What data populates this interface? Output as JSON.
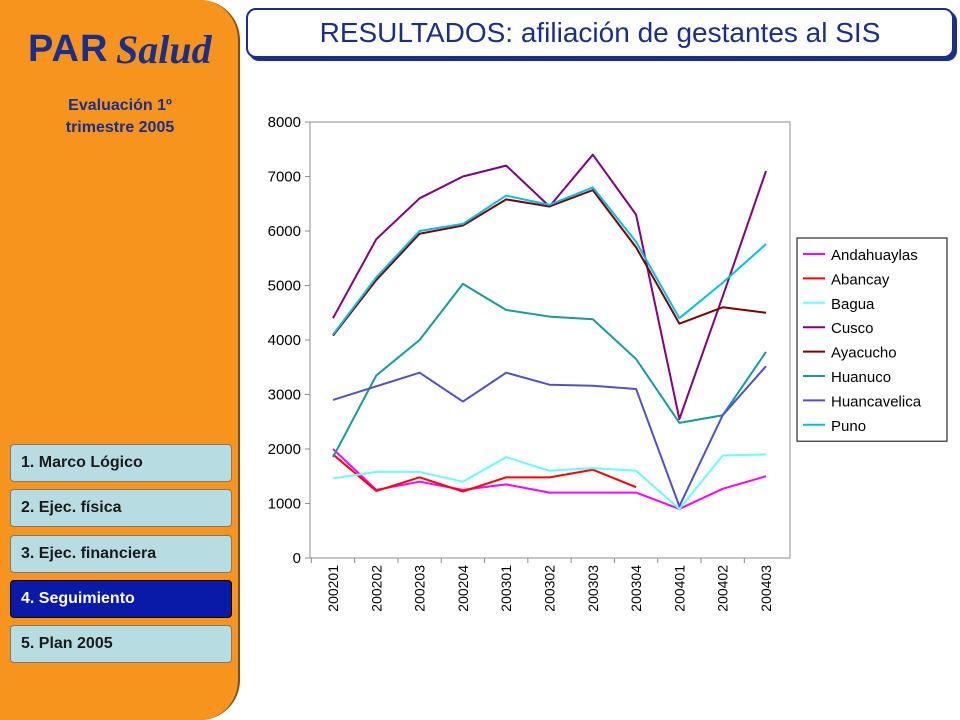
{
  "sidebar": {
    "logo_par": "PAR",
    "logo_salud": "Salud",
    "subtitle_line1": "Evaluación 1º",
    "subtitle_line2": "trimestre 2005",
    "menu": [
      {
        "label": "1. Marco Lógico"
      },
      {
        "label": "2. Ejec. física"
      },
      {
        "label": "3. Ejec. financiera"
      },
      {
        "label": "4. Seguimiento"
      },
      {
        "label": "5. Plan 2005"
      }
    ],
    "active_index": 3
  },
  "header": {
    "title": "RESULTADOS: afiliación de gestantes al SIS"
  },
  "chart_data": {
    "type": "line",
    "x": [
      "200201",
      "200202",
      "200203",
      "200204",
      "200301",
      "200302",
      "200303",
      "200304",
      "200401",
      "200402",
      "200403"
    ],
    "ylim": [
      0,
      8000
    ],
    "yticks": [
      0,
      1000,
      2000,
      3000,
      4000,
      5000,
      6000,
      7000,
      8000
    ],
    "grid": false,
    "legend_position": "right",
    "series": [
      {
        "name": "Andahuaylas",
        "color": "#ff00ff",
        "values": [
          2000,
          1250,
          1400,
          1250,
          1350,
          1200,
          1200,
          1200,
          900,
          1270,
          1500
        ]
      },
      {
        "name": "Abancay",
        "color": "#ff0000",
        "values": [
          1900,
          1230,
          1480,
          1220,
          1480,
          1480,
          1620,
          1300,
          null,
          null,
          null
        ]
      },
      {
        "name": "Bagua",
        "color": "#66ffff",
        "values": [
          1460,
          1580,
          1580,
          1400,
          1850,
          1600,
          1650,
          1600,
          900,
          1880,
          1900
        ]
      },
      {
        "name": "Cusco",
        "color": "#800080",
        "values": [
          4400,
          5850,
          6600,
          7000,
          7200,
          6450,
          7400,
          6300,
          2550,
          4800,
          7100
        ]
      },
      {
        "name": "Ayacucho",
        "color": "#800000",
        "values": [
          4080,
          5100,
          5950,
          6100,
          6580,
          6450,
          6750,
          5700,
          4300,
          4600,
          4500
        ]
      },
      {
        "name": "Huanuco",
        "color": "#169b9b",
        "values": [
          1850,
          3350,
          4000,
          5030,
          4550,
          4430,
          4380,
          3650,
          2480,
          2620,
          3780
        ]
      },
      {
        "name": "Huancavelica",
        "color": "#5050cc",
        "values": [
          2900,
          3150,
          3400,
          2870,
          3400,
          3180,
          3160,
          3100,
          950,
          2620,
          3520
        ]
      },
      {
        "name": "Puno",
        "color": "#00c0e8",
        "values": [
          4100,
          5150,
          6000,
          6130,
          6650,
          6480,
          6800,
          5800,
          4400,
          5050,
          5760
        ]
      }
    ]
  }
}
